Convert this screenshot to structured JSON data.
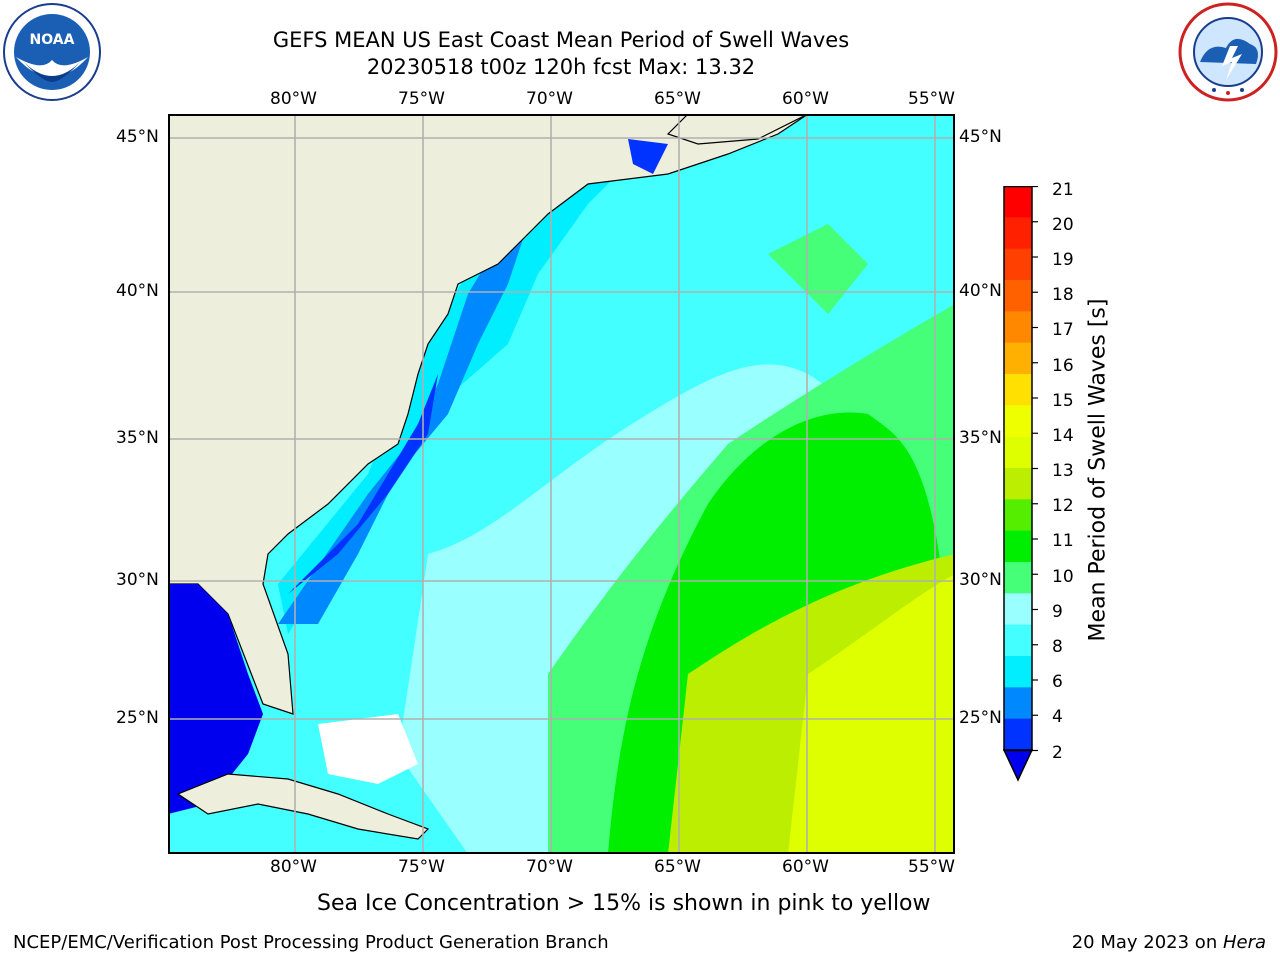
{
  "title": {
    "line1": "GEFS MEAN US East Coast Mean Period of Swell Waves",
    "line2": "20230518 t00z 120h fcst   Max: 13.32"
  },
  "logos": {
    "left": {
      "name": "noaa-logo",
      "text": "NOAA"
    },
    "right": {
      "name": "national-weather-service-logo",
      "text": "NATIONAL WEATHER SERVICE"
    }
  },
  "map": {
    "lon_labels": [
      "80°W",
      "75°W",
      "70°W",
      "65°W",
      "60°W",
      "55°W"
    ],
    "lat_labels": [
      "45°N",
      "40°N",
      "35°N",
      "30°N",
      "25°N"
    ],
    "colors": {
      "land": "#eeeedd",
      "grid": "#b0b0b0",
      "coast": "#000000"
    }
  },
  "colorbar": {
    "label": "Mean Period of Swell Waves [s]",
    "ticks": [
      "21",
      "20",
      "19",
      "18",
      "17",
      "16",
      "15",
      "14",
      "13",
      "12",
      "11",
      "10",
      "9",
      "8",
      "6",
      "4",
      "2"
    ],
    "colors": [
      "#ff0000",
      "#ff2000",
      "#ff4000",
      "#ff6000",
      "#ff8800",
      "#ffb000",
      "#ffe000",
      "#eeff00",
      "#ddff00",
      "#bbee00",
      "#55ee00",
      "#00ee00",
      "#44ff77",
      "#99ffff",
      "#44ffff",
      "#00eeff",
      "#0088ff",
      "#0033ff",
      "#0000ee"
    ]
  },
  "note": "Sea Ice Concentration > 15% is shown in pink to yellow",
  "footer": {
    "left": "NCEP/EMC/Verification Post Processing Product Generation Branch",
    "right_prefix": "20 May 2023 on ",
    "right_machine": "Hera"
  }
}
